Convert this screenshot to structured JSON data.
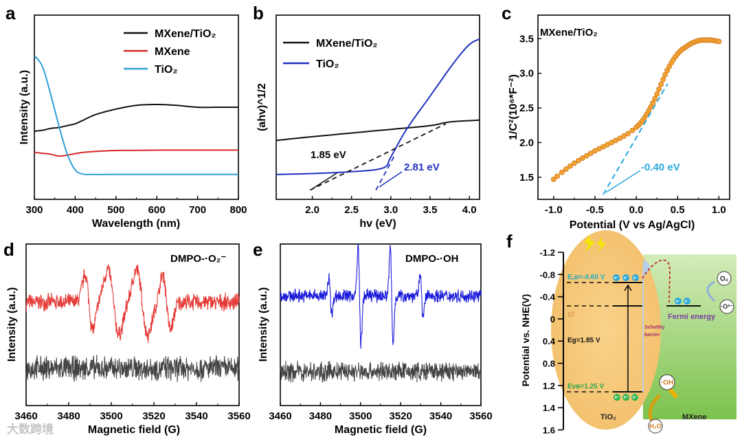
{
  "panels": {
    "a": {
      "letter": "a",
      "xlabel": "Wavelength (nm)",
      "ylabel": "Intensity (a.u.)"
    },
    "b": {
      "letter": "b",
      "xlabel": "hv (eV)",
      "ylabel": "(ahv)^1/2",
      "ann_black": "1.85 eV",
      "ann_blue": "2.81 eV"
    },
    "c": {
      "letter": "c",
      "xlabel": "Potential (V vs Ag/AgCl)",
      "ylabel": "1/C²(10⁶*F⁻²)",
      "title": "MXene/TiO₂",
      "ann": "-0.40 eV"
    },
    "d": {
      "letter": "d",
      "xlabel": "Magnetic field (G)",
      "ylabel": "Intensity (a.u.)",
      "label": "DMPO-·O₂⁻"
    },
    "e": {
      "letter": "e",
      "xlabel": "Magnetic field (G)",
      "ylabel": "Intensity (a.u.)",
      "label": "DMPO-·OH"
    },
    "f": {
      "letter": "f",
      "ylabel": "Potential vs. NHE(V)",
      "ecb": "E꜀ʙ=-0.60 V",
      "ef": "Ef",
      "eg": "Eg=1.85 V",
      "evb": "Eᴠʙ=1.25 V",
      "tio2": "TiO₂",
      "mxene": "MXene",
      "schottky1": "Schottky",
      "schottky2": "barrier",
      "fermi": "Fermi energy",
      "o2": "O₂",
      "o2rad": "·O²⁻",
      "oh": "·OH",
      "h2o": "H₂O",
      "electron": "e⁻",
      "hole": "h⁺",
      "yticks": [
        "-1.2",
        "-0.8",
        "-0.4",
        "0",
        "0.4",
        "0.8",
        "1.2",
        "1.4",
        "1.6"
      ]
    }
  },
  "watermark": "大数跨境",
  "colors": {
    "black": "#111111",
    "red": "#d62728",
    "blue": "#2e9fd6",
    "navy": "#1f2fbf",
    "orange": "#f0a030",
    "cyan": "#2aa8e0",
    "grey": "#444444"
  },
  "chart_data": [
    {
      "type": "line",
      "panel": "a",
      "xlabel": "Wavelength (nm)",
      "ylabel": "Intensity (a.u.)",
      "xlim": [
        300,
        800
      ],
      "xticks": [
        "300",
        "400",
        "500",
        "600",
        "700",
        "800"
      ],
      "xtick_values": [
        300,
        400,
        500,
        600,
        700,
        800
      ],
      "legend": "top-right",
      "x": [
        300,
        320,
        340,
        360,
        380,
        400,
        420,
        450,
        500,
        550,
        600,
        650,
        700,
        750,
        800
      ],
      "series": [
        {
          "name": "MXene/TiO₂",
          "color": "#111111",
          "values": [
            0.37,
            0.375,
            0.385,
            0.39,
            0.4,
            0.41,
            0.43,
            0.46,
            0.49,
            0.51,
            0.515,
            0.51,
            0.5,
            0.5,
            0.5
          ]
        },
        {
          "name": "MXene",
          "color": "#d62728",
          "values": [
            0.255,
            0.25,
            0.245,
            0.235,
            0.24,
            0.248,
            0.255,
            0.26,
            0.265,
            0.266,
            0.267,
            0.267,
            0.267,
            0.267,
            0.267
          ]
        },
        {
          "name": "TiO₂",
          "color": "#2e9fd6",
          "values": [
            0.78,
            0.72,
            0.57,
            0.4,
            0.25,
            0.16,
            0.137,
            0.135,
            0.135,
            0.135,
            0.135,
            0.135,
            0.135,
            0.135,
            0.135
          ]
        }
      ]
    },
    {
      "type": "line",
      "panel": "b",
      "xlabel": "hv (eV)",
      "ylabel": "(ahv)^1/2",
      "xlim": [
        1.54,
        4.13
      ],
      "xticks": [
        "2.0",
        "2.5",
        "3.0",
        "3.5",
        "4.0"
      ],
      "xtick_values": [
        2.0,
        2.5,
        3.0,
        3.5,
        4.0
      ],
      "legend": "top-left",
      "series": [
        {
          "name": "MXene/TiO₂",
          "color": "#111111",
          "x": [
            1.54,
            2.0,
            2.5,
            3.0,
            3.5,
            3.75,
            4.13
          ],
          "values": [
            0.32,
            0.34,
            0.36,
            0.38,
            0.4,
            0.42,
            0.43
          ]
        },
        {
          "name": "TiO₂",
          "color": "#1f2fbf",
          "x": [
            1.54,
            2.0,
            2.5,
            2.9,
            3.0,
            3.2,
            3.5,
            3.8,
            4.0,
            4.13
          ],
          "values": [
            0.135,
            0.14,
            0.15,
            0.17,
            0.23,
            0.38,
            0.56,
            0.74,
            0.84,
            0.87
          ]
        }
      ],
      "tangents": [
        {
          "series": "MXene/TiO₂",
          "x": [
            1.97,
            3.7
          ],
          "values": [
            0.05,
            0.41
          ]
        },
        {
          "series": "TiO₂",
          "x": [
            2.81,
            3.05
          ],
          "values": [
            0.05,
            0.24
          ]
        }
      ],
      "annotations": [
        "1.85 eV",
        "2.81 eV"
      ]
    },
    {
      "type": "scatter",
      "panel": "c",
      "xlabel": "Potential (V vs Ag/AgCl)",
      "ylabel": "1/C²(10⁶*F⁻²)",
      "xlim": [
        -1.19,
        1.13
      ],
      "ylim": [
        1.18,
        3.84
      ],
      "xticks": [
        "-1.0",
        "-0.5",
        "0.0",
        "0.5",
        "1.0"
      ],
      "xtick_values": [
        -1,
        -0.5,
        0,
        0.5,
        1
      ],
      "yticks": [
        "1.5",
        "2.0",
        "2.5",
        "3.0",
        "3.5"
      ],
      "ytick_values": [
        1.5,
        2,
        2.5,
        3,
        3.5
      ],
      "x": [
        -1.0,
        -0.9,
        -0.8,
        -0.7,
        -0.6,
        -0.5,
        -0.4,
        -0.3,
        -0.2,
        -0.1,
        0.0,
        0.05,
        0.1,
        0.15,
        0.2,
        0.25,
        0.3,
        0.35,
        0.4,
        0.45,
        0.5,
        0.55,
        0.6,
        0.65,
        0.7,
        0.75,
        0.8,
        0.85,
        0.9,
        0.95,
        1.0
      ],
      "values": [
        1.47,
        1.57,
        1.66,
        1.74,
        1.81,
        1.88,
        1.94,
        2.0,
        2.06,
        2.13,
        2.22,
        2.28,
        2.36,
        2.46,
        2.57,
        2.7,
        2.84,
        2.98,
        3.1,
        3.2,
        3.28,
        3.34,
        3.38,
        3.42,
        3.45,
        3.47,
        3.48,
        3.48,
        3.48,
        3.47,
        3.46
      ],
      "tangent": {
        "x": [
          -0.4,
          0.38
        ],
        "values": [
          1.25,
          2.85
        ]
      },
      "annotation": "-0.40 eV"
    },
    {
      "type": "line",
      "panel": "d",
      "xlabel": "Magnetic field (G)",
      "ylabel": "Intensity (a.u.)",
      "xlim": [
        3460,
        3560
      ],
      "xticks": [
        "3460",
        "3480",
        "3500",
        "3520",
        "3540",
        "3560"
      ],
      "xtick_values": [
        3460,
        3480,
        3500,
        3520,
        3540,
        3560
      ],
      "series": [
        {
          "name": "DMPO-·O₂⁻ (light)",
          "color": "#e53935",
          "baseline": 0.64,
          "noise": 0.05,
          "features": [
            {
              "center": 3489.5,
              "amp": 0.17,
              "width": 1.8
            },
            {
              "center": 3501,
              "amp": 0.2,
              "width": 2.6
            },
            {
              "center": 3514.5,
              "amp": 0.2,
              "width": 2.6
            },
            {
              "center": 3526,
              "amp": 0.17,
              "width": 1.8
            }
          ]
        },
        {
          "name": "DMPO-·O₂⁻ (dark)",
          "color": "#444444",
          "baseline": 0.23,
          "noise": 0.075,
          "features": []
        }
      ]
    },
    {
      "type": "line",
      "panel": "e",
      "xlabel": "Magnetic field (G)",
      "ylabel": "Intensity (a.u.)",
      "xlim": [
        3460,
        3560
      ],
      "xticks": [
        "3460",
        "3480",
        "3500",
        "3520",
        "3540",
        "3560"
      ],
      "xtick_values": [
        3460,
        3480,
        3500,
        3520,
        3540,
        3560
      ],
      "series": [
        {
          "name": "DMPO-·OH (light)",
          "color": "#1a1adb",
          "baseline": 0.68,
          "noise": 0.04,
          "features": [
            {
              "center": 3485,
              "amp": 0.12,
              "width": 0.7
            },
            {
              "center": 3499.5,
              "amp": 0.3,
              "width": 0.7
            },
            {
              "center": 3515.5,
              "amp": 0.3,
              "width": 0.7
            },
            {
              "center": 3530.5,
              "amp": 0.14,
              "width": 0.7
            }
          ]
        },
        {
          "name": "DMPO-·OH (dark)",
          "color": "#444444",
          "baseline": 0.21,
          "noise": 0.06,
          "features": []
        }
      ]
    }
  ]
}
